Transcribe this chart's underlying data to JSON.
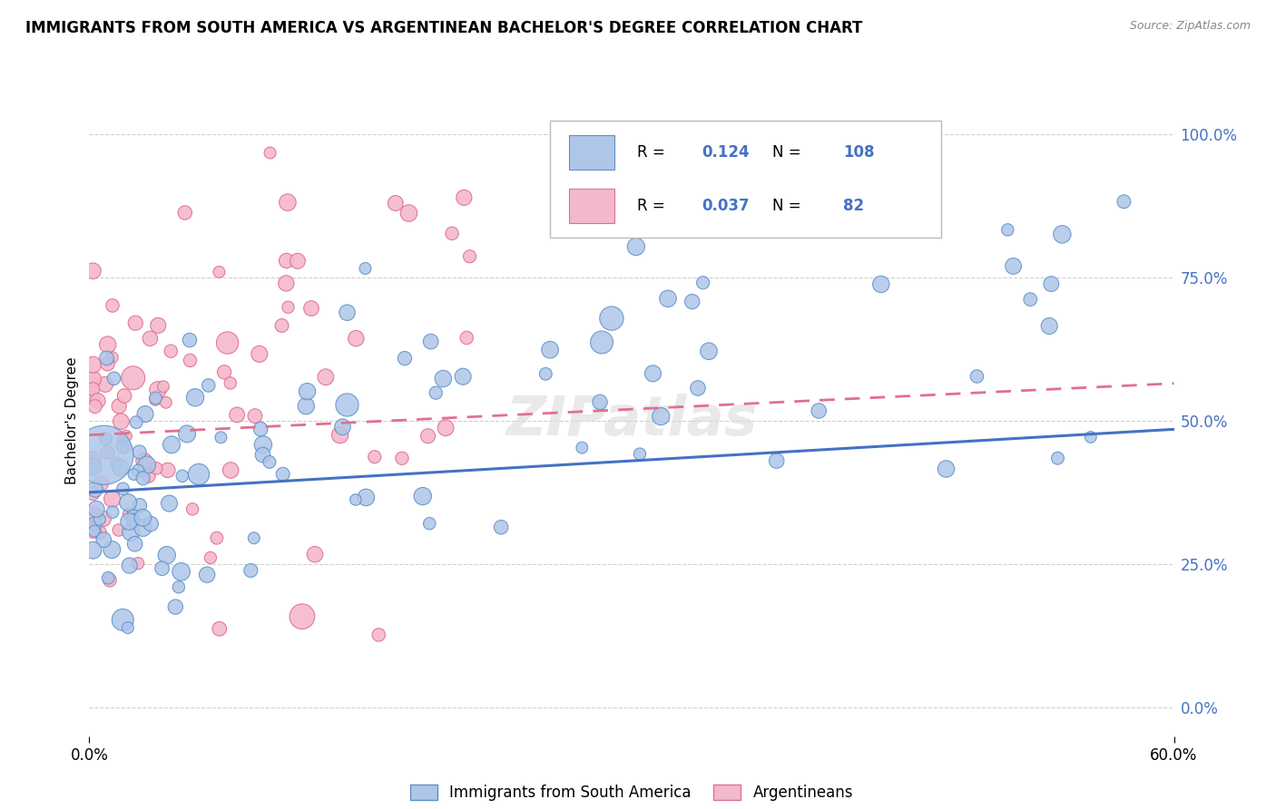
{
  "title": "IMMIGRANTS FROM SOUTH AMERICA VS ARGENTINEAN BACHELOR'S DEGREE CORRELATION CHART",
  "source": "Source: ZipAtlas.com",
  "ylabel": "Bachelor's Degree",
  "legend_label_blue": "Immigrants from South America",
  "legend_label_pink": "Argentineans",
  "R_blue": 0.124,
  "N_blue": 108,
  "R_pink": 0.037,
  "N_pink": 82,
  "color_blue": "#aec6e8",
  "color_pink": "#f4b8cc",
  "color_blue_edge": "#5b8fc9",
  "color_pink_edge": "#e0708a",
  "color_blue_line": "#4472c4",
  "color_pink_line": "#e07090",
  "color_right_axis": "#4472c4",
  "watermark": "ZIPatlas",
  "xlim": [
    0.0,
    0.6
  ],
  "ylim": [
    -0.05,
    1.05
  ],
  "grid_color": "#d0d0d0",
  "blue_line_x": [
    0.0,
    0.6
  ],
  "blue_line_y": [
    0.375,
    0.485
  ],
  "pink_line_x": [
    0.0,
    0.6
  ],
  "pink_line_y": [
    0.475,
    0.565
  ]
}
